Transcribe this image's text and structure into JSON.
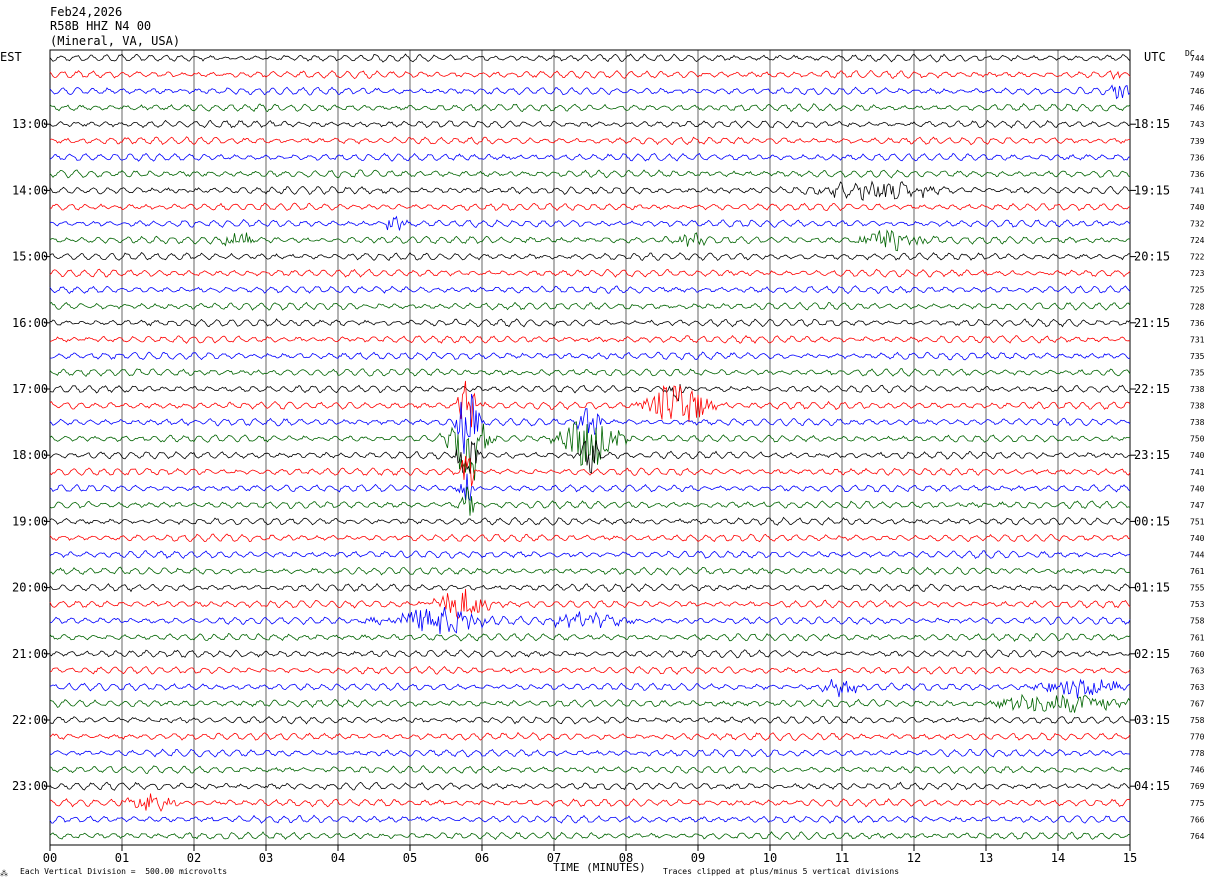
{
  "header": {
    "date": "Feb24,2026",
    "station": "R58B HHZ N4 00",
    "location": "(Mineral, VA, USA)"
  },
  "left_axis_title": "EST",
  "right_axis_title": "UTC",
  "dc_header": "DC",
  "x_axis_title": "TIME (MINUTES)",
  "footer": {
    "scale_note": "Each Vertical Division =  500.00 microvolts",
    "clip_note": "Traces clipped at plus/minus 5 vertical divisions"
  },
  "colors": {
    "cycle": [
      "#000000",
      "#ff0000",
      "#0000ff",
      "#006400"
    ]
  },
  "chart_data": {
    "type": "line",
    "title": "R58B HHZ N4 00",
    "xlabel": "TIME (MINUTES)",
    "x_ticks": [
      "00",
      "01",
      "02",
      "03",
      "04",
      "05",
      "06",
      "07",
      "08",
      "09",
      "10",
      "11",
      "12",
      "13",
      "14",
      "15"
    ],
    "xlim": [
      0,
      15
    ],
    "left_hour_labels": [
      {
        "row": 4,
        "label": "13:00"
      },
      {
        "row": 8,
        "label": "14:00"
      },
      {
        "row": 12,
        "label": "15:00"
      },
      {
        "row": 16,
        "label": "16:00"
      },
      {
        "row": 20,
        "label": "17:00"
      },
      {
        "row": 24,
        "label": "18:00"
      },
      {
        "row": 28,
        "label": "19:00"
      },
      {
        "row": 32,
        "label": "20:00"
      },
      {
        "row": 36,
        "label": "21:00"
      },
      {
        "row": 40,
        "label": "22:00"
      },
      {
        "row": 44,
        "label": "23:00"
      }
    ],
    "right_hour_labels": [
      {
        "row": 4,
        "label": "18:15"
      },
      {
        "row": 8,
        "label": "19:15"
      },
      {
        "row": 12,
        "label": "20:15"
      },
      {
        "row": 16,
        "label": "21:15"
      },
      {
        "row": 20,
        "label": "22:15"
      },
      {
        "row": 24,
        "label": "23:15"
      },
      {
        "row": 28,
        "label": "00:15"
      },
      {
        "row": 32,
        "label": "01:15"
      },
      {
        "row": 36,
        "label": "02:15"
      },
      {
        "row": 40,
        "label": "03:15"
      },
      {
        "row": 44,
        "label": "04:15"
      }
    ],
    "dc_offsets": [
      744,
      749,
      746,
      746,
      743,
      739,
      736,
      736,
      741,
      740,
      732,
      724,
      722,
      723,
      725,
      728,
      736,
      731,
      735,
      735,
      738,
      738,
      738,
      750,
      740,
      741,
      740,
      747,
      751,
      740,
      744,
      761,
      755,
      753,
      758,
      761,
      760,
      763,
      763,
      767,
      758,
      770,
      778,
      746,
      769,
      775,
      766,
      764
    ],
    "events": [
      {
        "row": 23,
        "minute": 5.8,
        "width_min": 0.5,
        "amplitude_div": 5,
        "note": "clipped"
      },
      {
        "row": 22,
        "minute": 5.8,
        "width_min": 0.3,
        "amplitude_div": 4
      },
      {
        "row": 21,
        "minute": 5.8,
        "width_min": 0.3,
        "amplitude_div": 3
      },
      {
        "row": 24,
        "minute": 5.8,
        "width_min": 0.3,
        "amplitude_div": 3
      },
      {
        "row": 25,
        "minute": 5.8,
        "width_min": 0.2,
        "amplitude_div": 2
      },
      {
        "row": 26,
        "minute": 5.8,
        "width_min": 0.2,
        "amplitude_div": 2
      },
      {
        "row": 27,
        "minute": 5.8,
        "width_min": 0.2,
        "amplitude_div": 2
      },
      {
        "row": 23,
        "minute": 7.5,
        "width_min": 0.8,
        "amplitude_div": 3
      },
      {
        "row": 22,
        "minute": 7.5,
        "width_min": 0.3,
        "amplitude_div": 2
      },
      {
        "row": 24,
        "minute": 7.5,
        "width_min": 0.3,
        "amplitude_div": 2
      },
      {
        "row": 21,
        "minute": 8.7,
        "width_min": 0.9,
        "amplitude_div": 2.5
      },
      {
        "row": 20,
        "minute": 8.7,
        "width_min": 0.2,
        "amplitude_div": 1.5
      },
      {
        "row": 8,
        "minute": 11.5,
        "width_min": 1.8,
        "amplitude_div": 0.9
      },
      {
        "row": 11,
        "minute": 11.7,
        "width_min": 1.0,
        "amplitude_div": 1.1
      },
      {
        "row": 11,
        "minute": 8.9,
        "width_min": 0.4,
        "amplitude_div": 0.8
      },
      {
        "row": 11,
        "minute": 2.6,
        "width_min": 0.5,
        "amplitude_div": 0.7
      },
      {
        "row": 10,
        "minute": 4.8,
        "width_min": 0.4,
        "amplitude_div": 0.7
      },
      {
        "row": 33,
        "minute": 5.7,
        "width_min": 0.8,
        "amplitude_div": 1.6
      },
      {
        "row": 34,
        "minute": 5.4,
        "width_min": 1.6,
        "amplitude_div": 1.3
      },
      {
        "row": 34,
        "minute": 7.4,
        "width_min": 1.2,
        "amplitude_div": 0.8
      },
      {
        "row": 38,
        "minute": 11.0,
        "width_min": 0.6,
        "amplitude_div": 0.9
      },
      {
        "row": 38,
        "minute": 14.3,
        "width_min": 1.2,
        "amplitude_div": 0.9
      },
      {
        "row": 39,
        "minute": 14.0,
        "width_min": 1.8,
        "amplitude_div": 1.1
      },
      {
        "row": 45,
        "minute": 1.4,
        "width_min": 0.7,
        "amplitude_div": 1.0
      },
      {
        "row": 2,
        "minute": 14.85,
        "width_min": 0.3,
        "amplitude_div": 1.0
      },
      {
        "row": 1,
        "minute": 14.8,
        "width_min": 0.1,
        "amplitude_div": 1.2
      }
    ]
  }
}
